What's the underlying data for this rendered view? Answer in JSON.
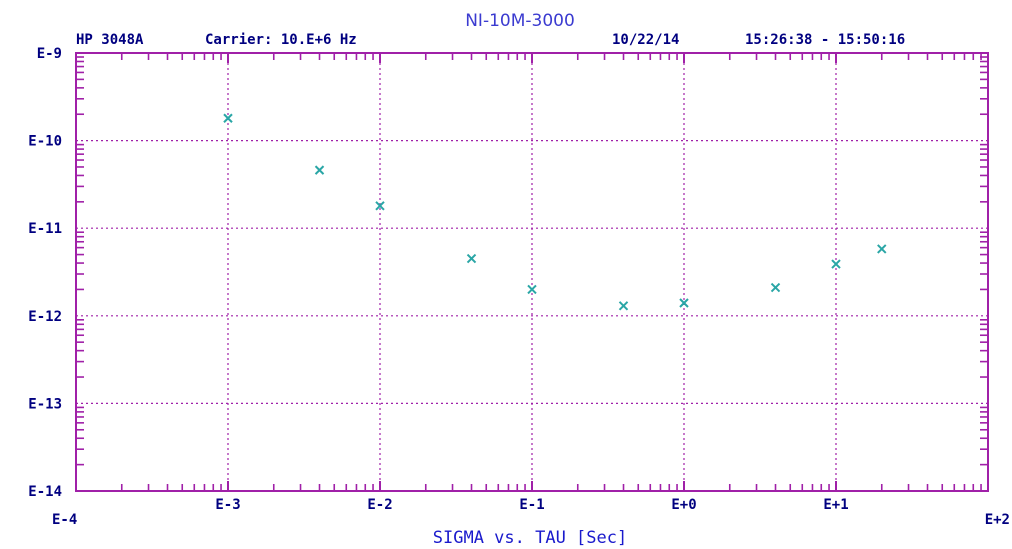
{
  "chart_data": {
    "type": "scatter",
    "title": "NI-10M-3000",
    "instrument": "HP 3048A",
    "carrier": "Carrier: 10.E+6 Hz",
    "date": "10/22/14",
    "time_range": "15:26:38 - 15:50:16",
    "xlabel": "SIGMA vs. TAU [Sec]",
    "ylabel": "",
    "x_scale": "log",
    "y_scale": "log",
    "xlim": [
      0.0001,
      100
    ],
    "ylim": [
      1e-14,
      1e-09
    ],
    "grid": true,
    "x_tick_labels": [
      "E-4",
      "E-3",
      "E-2",
      "E-1",
      "E+0",
      "E+1",
      "E+2"
    ],
    "y_tick_labels": [
      "E-9",
      "E-10",
      "E-11",
      "E-12",
      "E-13",
      "E-14"
    ],
    "series": [
      {
        "marker": "x",
        "color": "#2aa6a6",
        "x": [
          0.001,
          0.004,
          0.01,
          0.04,
          0.1,
          0.4,
          1,
          4,
          10,
          20
        ],
        "y": [
          1.8e-10,
          4.6e-11,
          1.8e-11,
          4.5e-12,
          2e-12,
          1.3e-12,
          1.4e-12,
          2.1e-12,
          3.9e-12,
          5.8e-12
        ]
      }
    ],
    "colors": {
      "axes": "#a020a8",
      "grid": "#a020a8",
      "text_dark": "#000080",
      "title": "#3b3bd0",
      "xlabel": "#1a1acc"
    }
  }
}
